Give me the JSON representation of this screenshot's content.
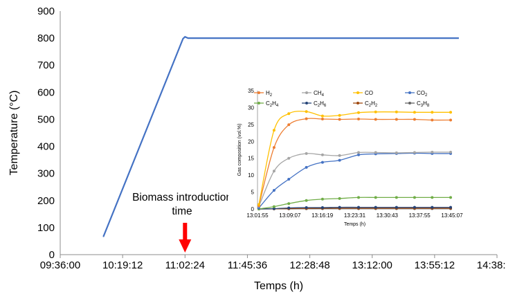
{
  "chart_data": [
    {
      "type": "line",
      "xlabel": "Temps  (h)",
      "ylabel": "Temperature  (°C)",
      "x_ticks": [
        "09:36:00",
        "10:19:12",
        "11:02:24",
        "11:45:36",
        "12:28:48",
        "13:12:00",
        "13:55:12",
        "14:38:24"
      ],
      "x_tick_minutes": [
        576,
        619.2,
        662.4,
        705.6,
        748.8,
        792,
        835.2,
        878.4
      ],
      "xlim_minutes": [
        576,
        878.4
      ],
      "ylim": [
        0,
        900
      ],
      "y_ticks": [
        0,
        100,
        200,
        300,
        400,
        500,
        600,
        700,
        800,
        900
      ],
      "grid": false,
      "series": [
        {
          "color": "#4472c4",
          "points": [
            {
              "t": "10:05:30",
              "y": 68
            },
            {
              "t": "10:06:00",
              "y": 68
            },
            {
              "t": "11:01:00",
              "y": 798
            },
            {
              "t": "11:02:24",
              "y": 805
            },
            {
              "t": "11:04:30",
              "y": 800
            },
            {
              "t": "14:12:00",
              "y": 800
            }
          ]
        }
      ],
      "annotation": {
        "lines": [
          "Biomass  introduction",
          "time"
        ],
        "x": "11:02:24",
        "arrow_color": "#ff0000"
      }
    },
    {
      "type": "line",
      "xlabel": "Temps  (h)",
      "ylabel": "Gas composition  (vol.%)",
      "x_ticks": [
        "13:01:55",
        "13:09:07",
        "13:16:19",
        "13:23:31",
        "13:30:43",
        "13:37:55",
        "13:45:07"
      ],
      "ylim": [
        0,
        35
      ],
      "y_ticks": [
        0,
        5,
        10,
        15,
        20,
        25,
        30,
        35
      ],
      "grid": false,
      "legend_position": "top",
      "x_minutes": [
        0,
        3.2,
        6.3,
        10,
        13.4,
        17,
        21,
        24.6,
        29,
        32.8,
        36.5,
        40.4
      ],
      "series": [
        {
          "name": "H",
          "sub": "2",
          "color": "#ed7d31",
          "values": [
            1.0,
            18.2,
            24.9,
            26.7,
            26.6,
            26.5,
            26.6,
            26.5,
            26.5,
            26.5,
            26.3,
            26.3
          ]
        },
        {
          "name": "CH",
          "sub": "4",
          "color": "#a5a5a5",
          "values": [
            0.8,
            11.2,
            15.0,
            16.4,
            16.0,
            15.8,
            16.7,
            16.7,
            16.6,
            16.7,
            16.8,
            16.8
          ]
        },
        {
          "name": "CO",
          "sub": "",
          "color": "#ffc000",
          "values": [
            1.3,
            23.3,
            28.2,
            28.8,
            27.5,
            27.7,
            28.5,
            28.7,
            28.7,
            28.6,
            28.6,
            28.6
          ]
        },
        {
          "name": "CO",
          "sub": "2",
          "color": "#4472c4",
          "values": [
            0.3,
            5.5,
            8.8,
            12.3,
            13.8,
            14.4,
            16.0,
            16.3,
            16.4,
            16.5,
            16.4,
            16.4
          ]
        },
        {
          "name": "C",
          "sub": "2",
          "name2": "H",
          "sub2": "4",
          "color": "#70ad47",
          "values": [
            0.0,
            0.7,
            1.6,
            2.5,
            2.9,
            3.1,
            3.4,
            3.4,
            3.4,
            3.4,
            3.4,
            3.4
          ]
        },
        {
          "name": "C",
          "sub": "2",
          "name2": "H",
          "sub2": "6",
          "color": "#264478",
          "values": [
            0.0,
            0.1,
            0.3,
            0.4,
            0.4,
            0.5,
            0.5,
            0.5,
            0.5,
            0.5,
            0.5,
            0.5
          ]
        },
        {
          "name": "C",
          "sub": "2",
          "name2": "H",
          "sub2": "2",
          "color": "#9e480e",
          "values": [
            0.0,
            0.05,
            0.1,
            0.15,
            0.2,
            0.2,
            0.2,
            0.2,
            0.2,
            0.2,
            0.2,
            0.2
          ]
        },
        {
          "name": "C",
          "sub": "3",
          "name2": "H",
          "sub2": "8",
          "color": "#636363",
          "values": [
            0.0,
            0.02,
            0.05,
            0.08,
            0.1,
            0.1,
            0.1,
            0.1,
            0.1,
            0.1,
            0.1,
            0.1
          ]
        }
      ]
    }
  ]
}
